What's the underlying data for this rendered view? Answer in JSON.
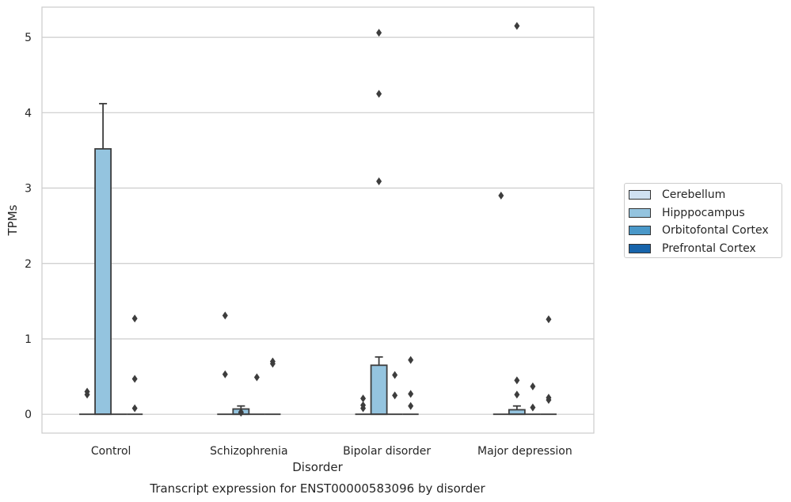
{
  "chart_data": {
    "type": "boxplot",
    "title": "",
    "caption": "Transcript expression for ENST00000583096 by disorder",
    "xlabel": "Disorder",
    "ylabel": "TPMs",
    "ylim": [
      -0.25,
      5.4
    ],
    "yticks": [
      0,
      1,
      2,
      3,
      4,
      5
    ],
    "categories": [
      "Control",
      "Schizophrenia",
      "Bipolar disorder",
      "Major depression"
    ],
    "legend_position": "right",
    "grid": true,
    "series": [
      {
        "name": "Cerebellum",
        "color": "#d0e1f2",
        "boxes": [
          {
            "q1": 0,
            "median": 0,
            "q3": 0,
            "whisker_high": 0,
            "outliers": [
              0.3,
              0.26
            ]
          },
          {
            "q1": 0,
            "median": 0,
            "q3": 0,
            "whisker_high": 0,
            "outliers": [
              1.31,
              0.53
            ]
          },
          {
            "q1": 0,
            "median": 0,
            "q3": 0,
            "whisker_high": 0,
            "outliers": [
              0.21,
              0.12,
              0.08
            ]
          },
          {
            "q1": 0,
            "median": 0,
            "q3": 0,
            "whisker_high": 0,
            "outliers": [
              2.9
            ]
          }
        ]
      },
      {
        "name": "Hipppocampus",
        "color": "#94c4df",
        "boxes": [
          {
            "q1": 0,
            "median": 0,
            "q3": 3.52,
            "whisker_high": 4.12,
            "outliers": []
          },
          {
            "q1": 0,
            "median": 0,
            "q3": 0.07,
            "whisker_high": 0.11,
            "outliers": [
              0.03,
              0.02
            ]
          },
          {
            "q1": 0,
            "median": 0,
            "q3": 0.65,
            "whisker_high": 0.76,
            "outliers": [
              5.06,
              4.25,
              3.09
            ]
          },
          {
            "q1": 0,
            "median": 0,
            "q3": 0.06,
            "whisker_high": 0.11,
            "outliers": [
              5.15,
              0.45,
              0.26
            ]
          }
        ]
      },
      {
        "name": "Orbitofontal Cortex",
        "color": "#4a98c9",
        "boxes": [
          {
            "q1": 0,
            "median": 0,
            "q3": 0,
            "whisker_high": 0,
            "outliers": []
          },
          {
            "q1": 0,
            "median": 0,
            "q3": 0,
            "whisker_high": 0,
            "outliers": [
              0.49
            ]
          },
          {
            "q1": 0,
            "median": 0,
            "q3": 0,
            "whisker_high": 0,
            "outliers": [
              0.52,
              0.25
            ]
          },
          {
            "q1": 0,
            "median": 0,
            "q3": 0,
            "whisker_high": 0,
            "outliers": [
              0.37,
              0.09
            ]
          }
        ]
      },
      {
        "name": "Prefrontal Cortex",
        "color": "#1764ab",
        "boxes": [
          {
            "q1": 0,
            "median": 0,
            "q3": 0,
            "whisker_high": 0,
            "outliers": [
              1.27,
              0.47,
              0.08
            ]
          },
          {
            "q1": 0,
            "median": 0,
            "q3": 0,
            "whisker_high": 0,
            "outliers": [
              0.7,
              0.67
            ]
          },
          {
            "q1": 0,
            "median": 0,
            "q3": 0,
            "whisker_high": 0,
            "outliers": [
              0.72,
              0.27,
              0.11
            ]
          },
          {
            "q1": 0,
            "median": 0,
            "q3": 0,
            "whisker_high": 0,
            "outliers": [
              1.26,
              0.22,
              0.19
            ]
          }
        ]
      }
    ]
  }
}
